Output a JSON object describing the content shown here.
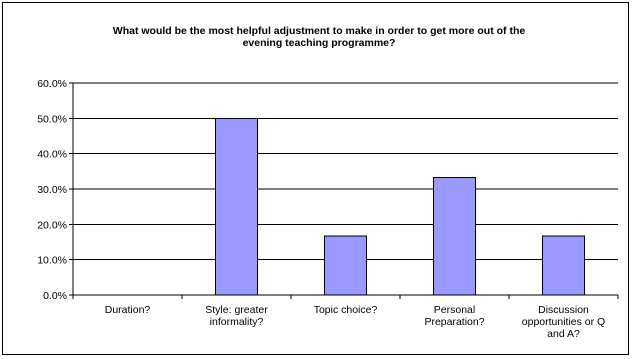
{
  "chart_data": {
    "type": "bar",
    "title_lines": [
      "What would be the most helpful adjustment to make in order to get more out of the",
      "evening teaching programme?"
    ],
    "categories": [
      [
        "Duration?"
      ],
      [
        "Style: greater",
        "informality?"
      ],
      [
        "Topic choice?"
      ],
      [
        "Personal",
        "Preparation?"
      ],
      [
        "Discussion",
        "opportunities or Q",
        "and A?"
      ]
    ],
    "values": [
      0.0,
      50.0,
      16.7,
      33.3,
      16.7
    ],
    "ylim": [
      0,
      60
    ],
    "yticks": [
      "0.0%",
      "10.0%",
      "20.0%",
      "30.0%",
      "40.0%",
      "50.0%",
      "60.0%"
    ],
    "bar_color": "#9999ff",
    "grid": true,
    "xlabel": "",
    "ylabel": ""
  }
}
